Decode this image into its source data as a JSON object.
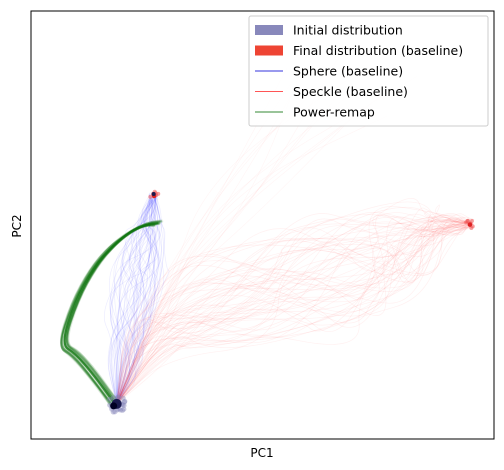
{
  "chart_data": {
    "type": "line",
    "title": "",
    "xlabel": "PC1",
    "ylabel": "PC2",
    "xlim": [
      0,
      100
    ],
    "ylim": [
      0,
      100
    ],
    "show_ticks": false,
    "grid": false,
    "legend_position": "top-right",
    "legend": [
      {
        "label": "Initial distribution",
        "kind": "patch",
        "color": "#8888bb"
      },
      {
        "label": "Final distribution (baseline)",
        "kind": "patch",
        "color": "#ee4433"
      },
      {
        "label": "Sphere (baseline)",
        "kind": "line",
        "color": "#3333dd"
      },
      {
        "label": "Speckle (baseline)",
        "kind": "line",
        "color": "#ff5555"
      },
      {
        "label": "Power-remap",
        "kind": "line",
        "color": "#338833"
      }
    ],
    "series": [
      {
        "name": "Sphere (baseline)",
        "color": "#3333ff",
        "start": [
          18.5,
          8.2
        ],
        "end": [
          26.4,
          56.8
        ],
        "path": [
          [
            18.5,
            8.2
          ],
          [
            20.5,
            20
          ],
          [
            22.5,
            33
          ],
          [
            24.2,
            44
          ],
          [
            25.5,
            51
          ],
          [
            26.4,
            56.8
          ]
        ],
        "spread": [
          [
            0,
            0
          ],
          [
            5,
            5
          ],
          [
            8,
            7
          ],
          [
            6,
            5
          ],
          [
            3,
            2
          ],
          [
            1,
            1
          ]
        ]
      },
      {
        "name": "Speckle (baseline)",
        "color": "#ff3333",
        "start": [
          18.5,
          8.2
        ],
        "end": [
          94.8,
          50.3
        ],
        "path": [
          [
            18.5,
            8.2
          ],
          [
            26,
            26
          ],
          [
            45,
            34
          ],
          [
            65,
            38
          ],
          [
            80,
            46
          ],
          [
            88,
            50
          ],
          [
            94.8,
            50.3
          ]
        ],
        "spread": [
          [
            0,
            0
          ],
          [
            6,
            8
          ],
          [
            12,
            14
          ],
          [
            14,
            18
          ],
          [
            10,
            14
          ],
          [
            5,
            4
          ],
          [
            1,
            1
          ]
        ]
      },
      {
        "name": "Power-remap",
        "color": "#117711",
        "path": [
          [
            18.2,
            8.0
          ],
          [
            13.5,
            15
          ],
          [
            9.5,
            20
          ],
          [
            6.5,
            22
          ],
          [
            9.5,
            32
          ],
          [
            13.5,
            40
          ],
          [
            17.5,
            45
          ],
          [
            21.5,
            48.5
          ],
          [
            25,
            50.2
          ],
          [
            27.5,
            50.4
          ]
        ]
      }
    ],
    "distributions": [
      {
        "name": "Initial distribution",
        "center": [
          18.5,
          8.2
        ],
        "color": "#1a1a4d"
      },
      {
        "name": "Final distribution (baseline)",
        "center": [
          26.6,
          57.0
        ],
        "color": "#dd2222"
      },
      {
        "name": "Final distribution (baseline)",
        "center": [
          94.8,
          50.3
        ],
        "color": "#dd2222"
      }
    ]
  }
}
